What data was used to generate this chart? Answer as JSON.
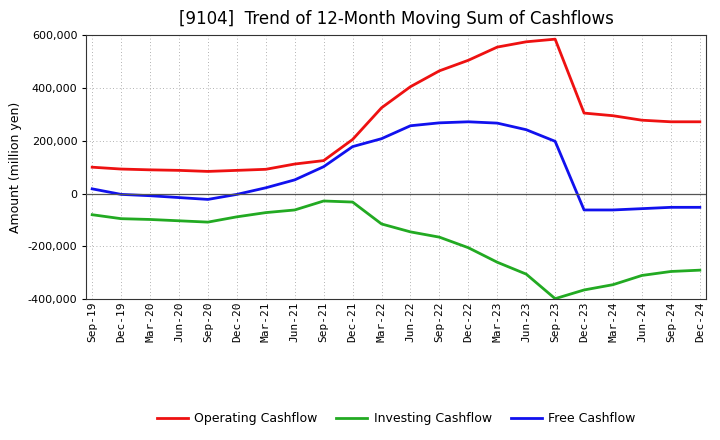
{
  "title": "[9104]  Trend of 12-Month Moving Sum of Cashflows",
  "ylabel": "Amount (million yen)",
  "ylim": [
    -400000,
    600000
  ],
  "yticks": [
    -400000,
    -200000,
    0,
    200000,
    400000,
    600000
  ],
  "background_color": "#ffffff",
  "plot_bg_color": "#ffffff",
  "grid_color": "#999999",
  "x_labels": [
    "Sep-19",
    "Dec-19",
    "Mar-20",
    "Jun-20",
    "Sep-20",
    "Dec-20",
    "Mar-21",
    "Jun-21",
    "Sep-21",
    "Dec-21",
    "Mar-22",
    "Jun-22",
    "Sep-22",
    "Dec-22",
    "Mar-23",
    "Jun-23",
    "Sep-23",
    "Dec-23",
    "Mar-24",
    "Jun-24",
    "Sep-24",
    "Dec-24"
  ],
  "operating": [
    100000,
    93000,
    90000,
    88000,
    84000,
    88000,
    92000,
    112000,
    125000,
    205000,
    325000,
    405000,
    465000,
    505000,
    555000,
    575000,
    585000,
    305000,
    295000,
    278000,
    272000,
    272000
  ],
  "investing": [
    -80000,
    -95000,
    -98000,
    -103000,
    -108000,
    -88000,
    -72000,
    -62000,
    -28000,
    -32000,
    -115000,
    -145000,
    -165000,
    -205000,
    -260000,
    -305000,
    -398000,
    -365000,
    -345000,
    -310000,
    -295000,
    -290000
  ],
  "free": [
    18000,
    -3000,
    -8000,
    -15000,
    -22000,
    -3000,
    22000,
    52000,
    102000,
    178000,
    208000,
    257000,
    268000,
    272000,
    267000,
    242000,
    198000,
    -62000,
    -62000,
    -57000,
    -52000,
    -52000
  ],
  "op_color": "#ee1111",
  "inv_color": "#22aa22",
  "free_color": "#1111ee",
  "line_width": 2.0,
  "title_fontsize": 12,
  "legend_fontsize": 9,
  "tick_fontsize": 8,
  "ylabel_fontsize": 9
}
